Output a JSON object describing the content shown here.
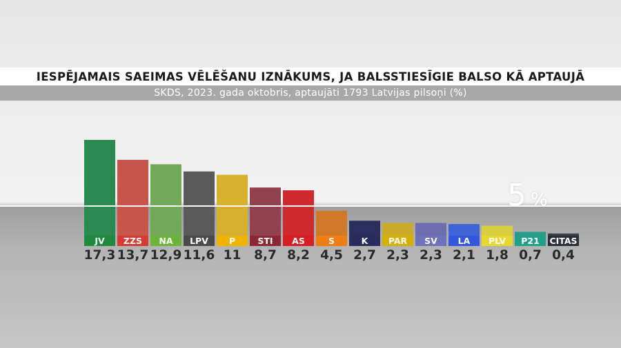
{
  "title": "IESPĒJAMAIS SAEIMAS VĒLĒŠANU IZNĀKUMS, JA BALSSTIESĪGIE BALSO KĀ APTAUJĀ",
  "subtitle": "SKDS, 2023. gada oktobris, aptaujāti 1793 Latvijas pilsoņi (%)",
  "threshold": {
    "value": "5",
    "unit": "%"
  },
  "chart_data": {
    "type": "bar",
    "categories": [
      "JV",
      "ZZS",
      "NA",
      "LPV",
      "P",
      "STI",
      "AS",
      "S",
      "K",
      "PAR",
      "SV",
      "LA",
      "PLV",
      "P21",
      "CITAS"
    ],
    "value_labels": [
      "17,3",
      "13,7",
      "12,9",
      "11,6",
      "11",
      "8,7",
      "8,2",
      "4,5",
      "2,7",
      "2,3",
      "2,3",
      "2,1",
      "1,8",
      "0,7",
      "0,4"
    ],
    "values": [
      17.3,
      13.7,
      12.9,
      11.6,
      11,
      8.7,
      8.2,
      4.5,
      2.7,
      2.3,
      2.3,
      2.1,
      1.8,
      0.7,
      0.4
    ],
    "colors": [
      "#2a8a50",
      "#c8554a",
      "#72a85a",
      "#5a5a5a",
      "#d8b030",
      "#92424e",
      "#cf2b2e",
      "#cf7828",
      "#2c2f5e",
      "#c8aa28",
      "#6c6eaf",
      "#3f64d8",
      "#d8cf3e",
      "#2a9a88",
      "#3a3f4a"
    ],
    "label_colors": [
      "#1e8a3e",
      "#d63a32",
      "#6cb33a",
      "#4a4a4a",
      "#f0b400",
      "#8c2834",
      "#d81e24",
      "#ef7d12",
      "#2a2c5c",
      "#d6b000",
      "#6f72b8",
      "#3556e0",
      "#e8d82e",
      "#20a08a",
      "#2a2f3a"
    ],
    "threshold": 5,
    "ylim": [
      0,
      17.3
    ]
  }
}
